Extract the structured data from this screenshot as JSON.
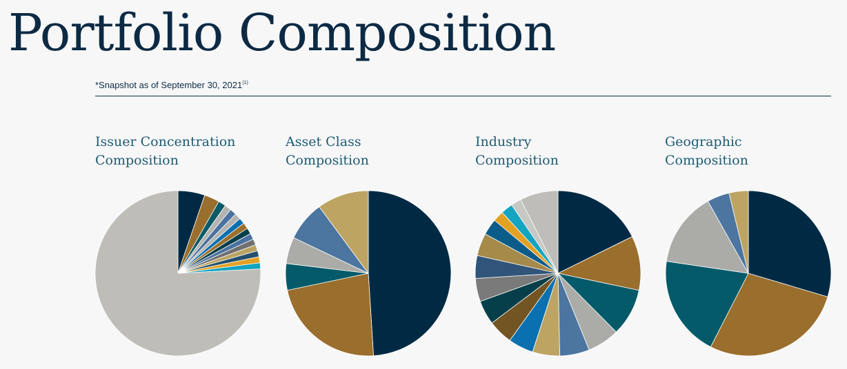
{
  "page": {
    "title": "Portfolio Composition",
    "snapshot": "*Snapshot as of September 30, 2021",
    "snapshot_note": "(1)"
  },
  "chart_data": [
    {
      "type": "pie",
      "title_lines": [
        "Issuer Concentration",
        "Composition"
      ],
      "values": [
        5.3,
        3.0,
        1.5,
        1.3,
        1.3,
        1.2,
        1.2,
        1.2,
        1.2,
        1.2,
        1.2,
        1.2,
        1.2,
        1.2,
        1.2,
        76.6
      ],
      "colors": [
        "#002a44",
        "#9a6e2c",
        "#0a5a68",
        "#b3b4b0",
        "#4a72a0",
        "#b3b4b0",
        "#0a70b0",
        "#9a6e2c",
        "#063f4a",
        "#4a72a0",
        "#707070",
        "#bba462",
        "#24506e",
        "#e3a124",
        "#14a3c1",
        "#bebdb8"
      ]
    },
    {
      "type": "pie",
      "title_lines": [
        "Asset Class",
        "Composition"
      ],
      "values": [
        49.0,
        22.7,
        5.2,
        5.2,
        7.8,
        10.1
      ],
      "colors": [
        "#002a44",
        "#9a6e2c",
        "#045a68",
        "#abaca8",
        "#4c75a0",
        "#bda462"
      ]
    },
    {
      "type": "pie",
      "title_lines": [
        "Industry",
        "Composition"
      ],
      "values": [
        18.3,
        11.0,
        9.6,
        6.5,
        6.0,
        5.5,
        5.1,
        5.0,
        4.9,
        4.7,
        4.6,
        4.6,
        3.3,
        2.2,
        2.4,
        2.1,
        7.7
      ],
      "colors": [
        "#002a44",
        "#9a6e2c",
        "#045a68",
        "#abaca8",
        "#4c75a0",
        "#bda462",
        "#0a70b0",
        "#735423",
        "#063f4a",
        "#7a7a7a",
        "#31557a",
        "#a58a4a",
        "#0c5c8a",
        "#e3a124",
        "#14a3c1",
        "#c7c7c3",
        "#bebdb8"
      ]
    },
    {
      "type": "pie",
      "title_lines": [
        "Geographic",
        "Composition"
      ],
      "values": [
        29.9,
        28.2,
        20.0,
        14.7,
        4.4,
        3.8
      ],
      "colors": [
        "#002a44",
        "#9a6e2c",
        "#045a68",
        "#abaca8",
        "#4c75a0",
        "#bda462"
      ]
    }
  ]
}
